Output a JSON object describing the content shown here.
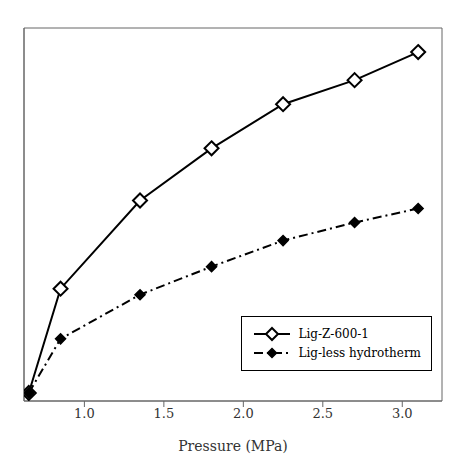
{
  "chart_data": {
    "type": "line",
    "xlabel": "Pressure (MPa)",
    "x": [
      0.65,
      0.85,
      1.35,
      1.8,
      2.25,
      2.7,
      3.1
    ],
    "series": [
      {
        "name": "Lig-Z-600-1",
        "color": "#000000",
        "marker": "open_diamond",
        "line_style": "solid",
        "values": [
          0.02,
          0.28,
          0.5,
          0.63,
          0.74,
          0.8,
          0.87
        ]
      },
      {
        "name": "Lig-less hydrotherm",
        "color": "#000000",
        "marker": "diamond",
        "line_style": "dashdot",
        "values": [
          0.02,
          0.155,
          0.265,
          0.335,
          0.4,
          0.445,
          0.48
        ]
      }
    ],
    "xlim": [
      0.62,
      3.25
    ],
    "ylim": [
      0.0,
      0.93
    ],
    "xticks": [
      {
        "value": 1.0,
        "label": "1.0"
      },
      {
        "value": 1.5,
        "label": "1.5"
      },
      {
        "value": 2.0,
        "label": "2.0"
      },
      {
        "value": 2.5,
        "label": "2.5"
      },
      {
        "value": 3.0,
        "label": "3.0"
      }
    ],
    "tick_labels": "x",
    "legend": "lower right"
  }
}
